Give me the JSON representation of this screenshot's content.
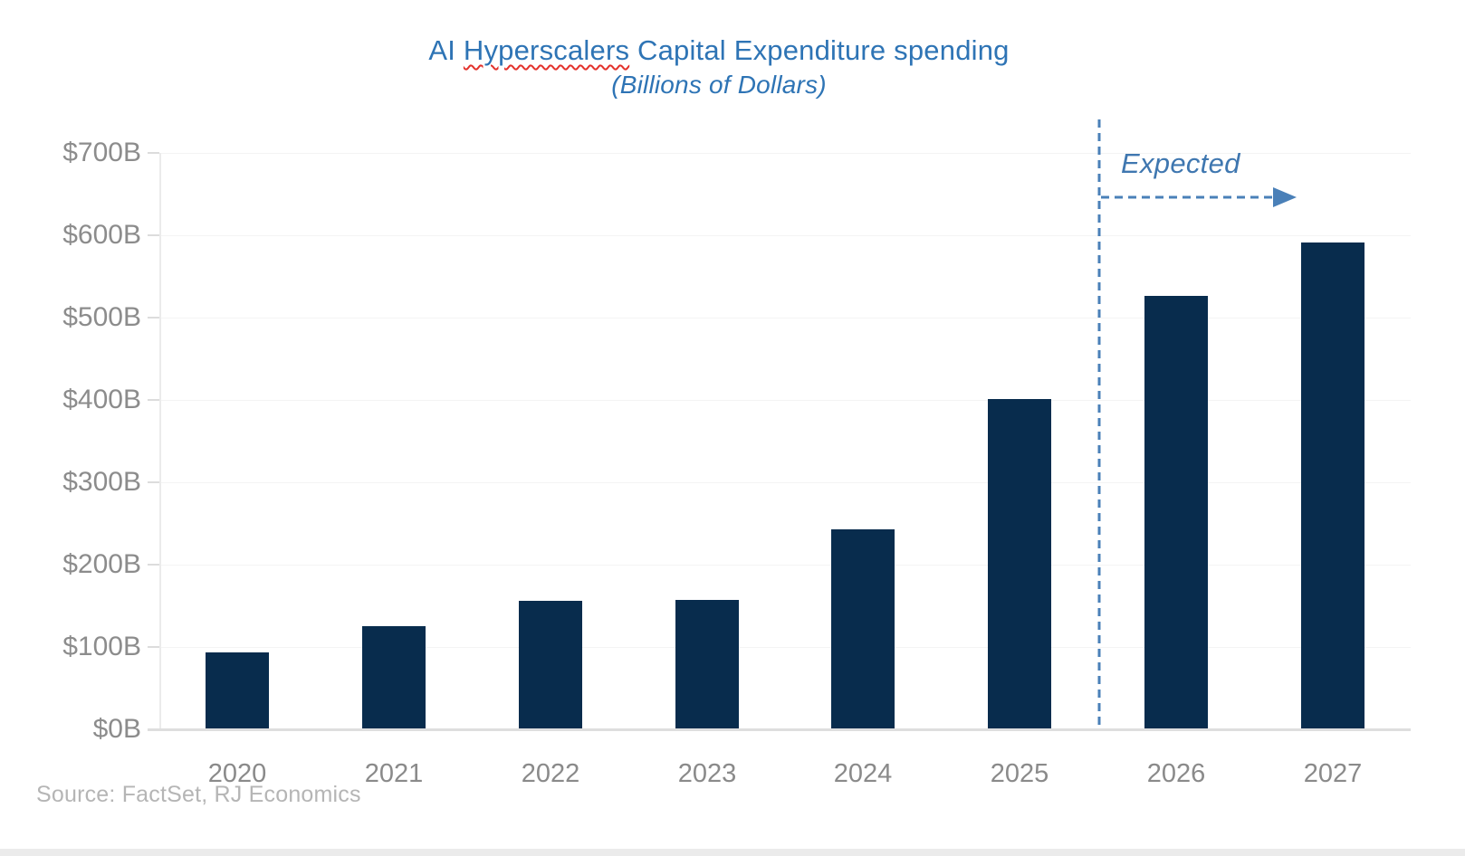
{
  "page": {
    "title": {
      "prefix": "AI ",
      "misspelled_word": "Hyperscalers",
      "suffix": " Capital Expenditure spending"
    },
    "subtitle": "(Billions of Dollars)",
    "source": "Source: FactSet, RJ Economics",
    "annotation_label": "Expected"
  },
  "chart_data": {
    "type": "bar",
    "title": "AI Hyperscalers Capital Expenditure spending",
    "subtitle": "(Billions of Dollars)",
    "categories": [
      "2020",
      "2021",
      "2022",
      "2023",
      "2024",
      "2025",
      "2026",
      "2027"
    ],
    "values": [
      92,
      124,
      155,
      156,
      242,
      400,
      525,
      590
    ],
    "unit": "Billions of Dollars",
    "ylabel": "",
    "xlabel": "",
    "ylim": [
      0,
      700
    ],
    "ytick_step": 100,
    "ytick_labels": [
      "$0B",
      "$100B",
      "$200B",
      "$300B",
      "$400B",
      "$500B",
      "$600B",
      "$700B"
    ],
    "grid": "faint-horizontal",
    "legend": "none",
    "annotation": {
      "text": "Expected",
      "applies_to_categories": [
        "2026",
        "2027"
      ],
      "marker": "dashed-vertical-line-and-right-arrow"
    },
    "colors": {
      "bar": "#082C4D",
      "title_blue": "#2E74B5",
      "annotation_blue": "#4A80B8",
      "axis_text_gray": "#8a8a8a",
      "source_gray": "#b5b5b5"
    },
    "source": "Source: FactSet, RJ Economics"
  }
}
